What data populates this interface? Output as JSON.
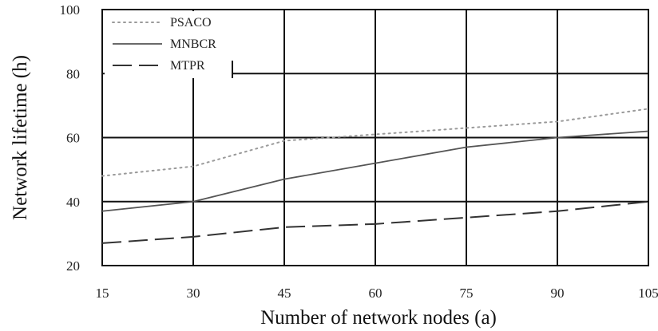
{
  "chart_data": {
    "type": "line",
    "x": [
      15,
      30,
      45,
      60,
      75,
      90,
      105
    ],
    "xlabel": "Number of network nodes (a)",
    "ylabel": "Network lifetime (h)",
    "xlim": [
      15,
      105
    ],
    "ylim": [
      20,
      100
    ],
    "xticks": [
      "15",
      "30",
      "45",
      "60",
      "75",
      "90",
      "105"
    ],
    "yticks": [
      "20",
      "40",
      "60",
      "80",
      "100"
    ],
    "grid": true,
    "legend_position": "top-left",
    "series": [
      {
        "name": "PSACO",
        "style": "dotted",
        "color": "#9a9a9a",
        "values": [
          48,
          51,
          59,
          61,
          63,
          65,
          69
        ]
      },
      {
        "name": "MNBCR",
        "style": "solid",
        "color": "#555555",
        "values": [
          37,
          40,
          47,
          52,
          57,
          60,
          62
        ]
      },
      {
        "name": "MTPR",
        "style": "dashed",
        "color": "#333333",
        "values": [
          27,
          29,
          32,
          33,
          35,
          37,
          40
        ]
      }
    ]
  }
}
